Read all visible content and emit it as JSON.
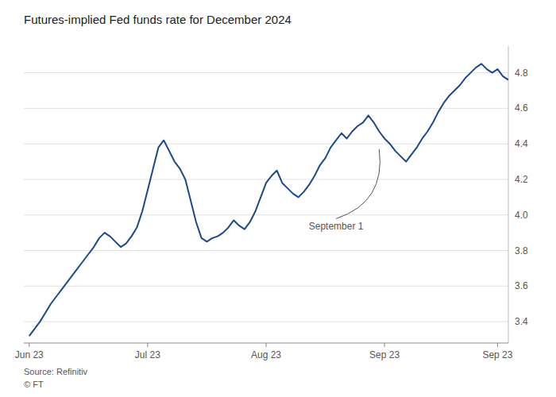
{
  "chart_data": {
    "type": "line",
    "title": "Futures-implied Fed funds rate for December 2024",
    "source": "Source: Refinitiv",
    "credit": "© FT",
    "annotations": [
      {
        "text": "September 1",
        "x": 57,
        "y": 3.97,
        "arrow_x": 65,
        "arrow_y": 4.37
      }
    ],
    "color": "#1a4a8a",
    "grid": true,
    "ylim": [
      3.28,
      4.95
    ],
    "yticks": [
      3.4,
      3.6,
      3.8,
      {
        "value": 4.0,
        "label": "4.0"
      },
      4.2,
      4.4,
      4.6,
      4.8
    ],
    "categories": [
      "Jun 23",
      null,
      null,
      null,
      null,
      null,
      null,
      null,
      null,
      null,
      null,
      null,
      null,
      null,
      null,
      null,
      null,
      null,
      null,
      null,
      null,
      null,
      "Jul 23",
      null,
      null,
      null,
      null,
      null,
      null,
      null,
      null,
      null,
      null,
      null,
      null,
      null,
      null,
      null,
      null,
      null,
      null,
      null,
      null,
      null,
      "Aug 23",
      null,
      null,
      null,
      null,
      null,
      null,
      null,
      null,
      null,
      null,
      null,
      null,
      null,
      null,
      null,
      null,
      null,
      null,
      null,
      null,
      null,
      "Sep 23",
      null,
      null,
      null,
      null,
      null,
      null,
      null,
      null,
      null,
      null,
      null,
      null,
      null,
      null,
      null,
      null,
      null,
      null,
      null,
      null,
      "Sep 23",
      null,
      null
    ],
    "values": [
      3.32,
      3.36,
      3.4,
      3.45,
      3.5,
      3.54,
      3.58,
      3.62,
      3.66,
      3.7,
      3.74,
      3.78,
      3.82,
      3.87,
      3.9,
      3.88,
      3.85,
      3.82,
      3.84,
      3.88,
      3.93,
      4.02,
      4.14,
      4.26,
      4.38,
      4.42,
      4.36,
      4.3,
      4.26,
      4.2,
      4.08,
      3.96,
      3.87,
      3.85,
      3.87,
      3.88,
      3.9,
      3.93,
      3.97,
      3.94,
      3.92,
      3.96,
      4.02,
      4.1,
      4.18,
      4.22,
      4.25,
      4.18,
      4.15,
      4.12,
      4.1,
      4.13,
      4.17,
      4.22,
      4.28,
      4.32,
      4.38,
      4.42,
      4.46,
      4.43,
      4.47,
      4.5,
      4.52,
      4.56,
      4.52,
      4.47,
      4.43,
      4.4,
      4.36,
      4.33,
      4.3,
      4.34,
      4.38,
      4.43,
      4.47,
      4.52,
      4.58,
      4.63,
      4.67,
      4.7,
      4.73,
      4.77,
      4.8,
      4.83,
      4.85,
      4.82,
      4.8,
      4.82,
      4.78,
      4.76
    ]
  }
}
